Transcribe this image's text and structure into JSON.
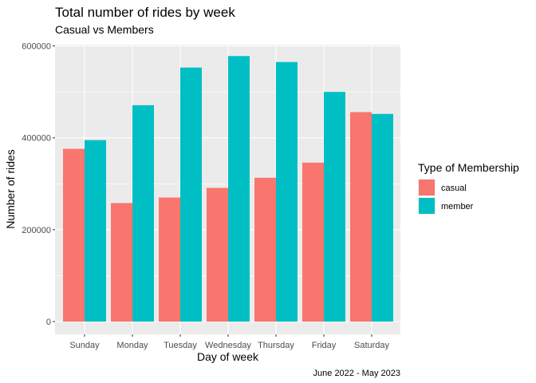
{
  "chart_data": {
    "type": "bar",
    "title": "Total number of rides by week",
    "subtitle": "Casual vs Members",
    "xlabel": "Day of week",
    "ylabel": "Number of rides",
    "caption": "June 2022 - May 2023",
    "categories": [
      "Sunday",
      "Monday",
      "Tuesday",
      "Wednesday",
      "Thursday",
      "Friday",
      "Saturday"
    ],
    "series": [
      {
        "name": "casual",
        "color": "#F8766D",
        "values": [
          376000,
          258000,
          270000,
          291000,
          313000,
          346000,
          456000
        ]
      },
      {
        "name": "member",
        "color": "#00BFC4",
        "values": [
          395000,
          471000,
          553000,
          578000,
          565000,
          500000,
          452000
        ]
      }
    ],
    "ylim": [
      0,
      600000
    ],
    "yticks": [
      0,
      200000,
      400000,
      600000
    ],
    "ytick_labels": [
      "0",
      "200000",
      "400000",
      "600000"
    ],
    "grid": true,
    "legend": {
      "title": "Type of Membership",
      "position": "right"
    }
  }
}
